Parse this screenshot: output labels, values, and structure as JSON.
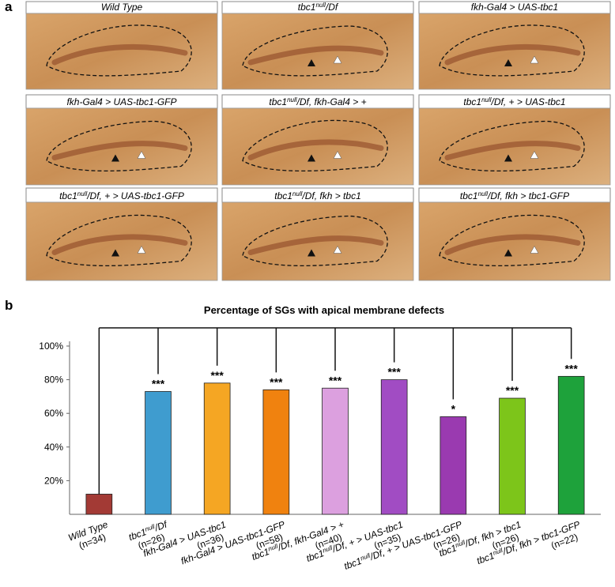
{
  "panel_a": {
    "letter": "a",
    "panels": [
      {
        "label": [
          "Wild Type"
        ]
      },
      {
        "label": [
          "tbc1",
          "null",
          "/Df"
        ]
      },
      {
        "label": [
          "fkh-Gal4 > UAS-tbc1"
        ]
      },
      {
        "label": [
          "fkh-Gal4 > UAS-tbc1-GFP"
        ]
      },
      {
        "label": [
          "tbc1",
          "null",
          "/Df, fkh-Gal4 > +"
        ]
      },
      {
        "label": [
          "tbc1",
          "null",
          "/Df, + > UAS-tbc1"
        ]
      },
      {
        "label": [
          "tbc1",
          "null",
          "/Df, + > UAS-tbc1-GFP"
        ]
      },
      {
        "label": [
          "tbc1",
          "null",
          "/Df, fkh > tbc1"
        ]
      },
      {
        "label": [
          "tbc1",
          "null",
          "/Df, fkh > tbc1-GFP"
        ]
      }
    ]
  },
  "chart_data": {
    "type": "bar",
    "panel_letter": "b",
    "title": "Percentage of  SGs with apical membrane defects",
    "categories": [
      [
        "Wild Type"
      ],
      [
        "tbc1",
        "null",
        "/Df"
      ],
      [
        "fkh-Gal4 > UAS-tbc1"
      ],
      [
        "fkh-Gal4 > UAS-tbc1-GFP"
      ],
      [
        "tbc1",
        "null",
        "/Df, fkh-Gal4 > +"
      ],
      [
        "tbc1",
        "null",
        "/Df, + > UAS-tbc1"
      ],
      [
        "tbc1",
        "null",
        "/Df, + > UAS-tbc1-GFP"
      ],
      [
        "tbc1",
        "null",
        "/Df, fkh > tbc1"
      ],
      [
        "tbc1",
        "null",
        "/Df, fkh > tbc1-GFP"
      ]
    ],
    "n_labels": [
      "(n=34)",
      "(n=26)",
      "(n=36)",
      "(n=58)",
      "(n=40)",
      "(n=35)",
      "(n=26)",
      "(n=26)",
      "(n=22)"
    ],
    "values": [
      12,
      73,
      78,
      74,
      75,
      80,
      58,
      69,
      82
    ],
    "colors": [
      "#a33a35",
      "#3f9ccf",
      "#f5a623",
      "#f0820f",
      "#dca0df",
      "#a14cc3",
      "#9a3ab0",
      "#7dc51a",
      "#1ea23b"
    ],
    "significance": [
      null,
      "***",
      "***",
      "***",
      "***",
      "***",
      "*",
      "***",
      "***"
    ],
    "ylim": [
      0,
      100
    ],
    "yticks": [
      {
        "value": 20,
        "label": "20%"
      },
      {
        "value": 40,
        "label": "40%"
      },
      {
        "value": 60,
        "label": "60%"
      },
      {
        "value": 80,
        "label": "80%"
      },
      {
        "value": 100,
        "label": "100%"
      }
    ]
  }
}
